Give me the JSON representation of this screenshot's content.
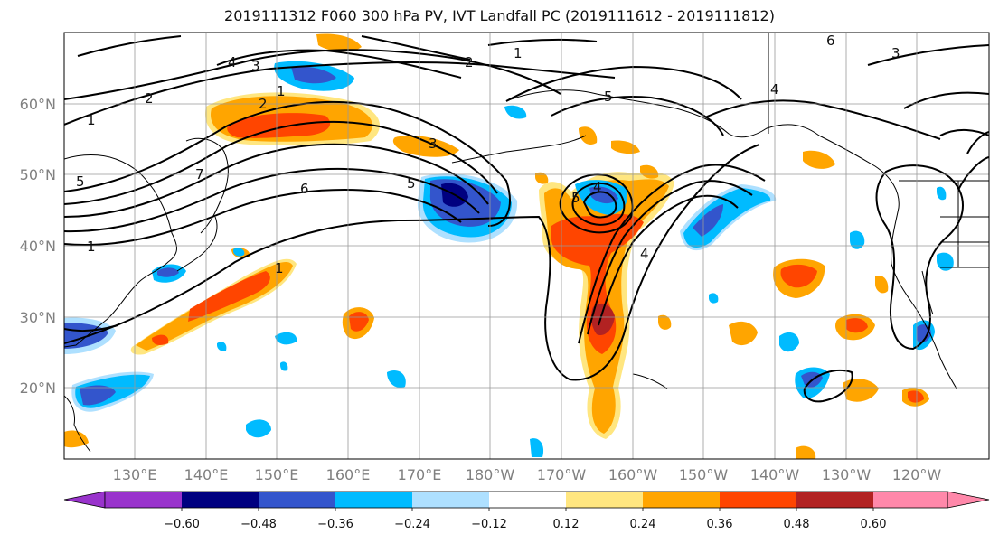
{
  "title": "2019111312 F060 300 hPa PV, IVT Landfall PC (2019111612 - 2019111812)",
  "longitude_labels": [
    "130°E",
    "140°E",
    "150°E",
    "160°E",
    "170°E",
    "180°W",
    "170°W",
    "160°W",
    "150°W",
    "140°W",
    "130°W",
    "120°W"
  ],
  "latitude_labels": [
    "60°N",
    "50°N",
    "40°N",
    "30°N",
    "20°N"
  ],
  "colorbar": {
    "ticks": [
      "−0.60",
      "−0.48",
      "−0.36",
      "−0.24",
      "−0.12",
      "0.12",
      "0.24",
      "0.36",
      "0.48",
      "0.60"
    ],
    "colors": [
      "#9933cc",
      "#000080",
      "#3355cc",
      "#00bbff",
      "#aee0ff",
      "#ffffff",
      "#ffe680",
      "#ffa500",
      "#ff4500",
      "#b22222",
      "#ff88aa"
    ]
  },
  "contour_labels": [
    "1",
    "2",
    "3",
    "4",
    "5",
    "6",
    "7"
  ],
  "map": {
    "lon_range": [
      "120°E",
      "110°W"
    ],
    "lat_range": [
      "10°N",
      "70°N"
    ],
    "grid": true,
    "colormap_colors": {
      "dark_blue": "#000080",
      "blue": "#3355cc",
      "cyan": "#00bbff",
      "light_blue": "#aee0ff",
      "yellow": "#ffe680",
      "orange": "#ffa500",
      "red_orange": "#ff4500",
      "dark_red": "#b22222"
    }
  }
}
